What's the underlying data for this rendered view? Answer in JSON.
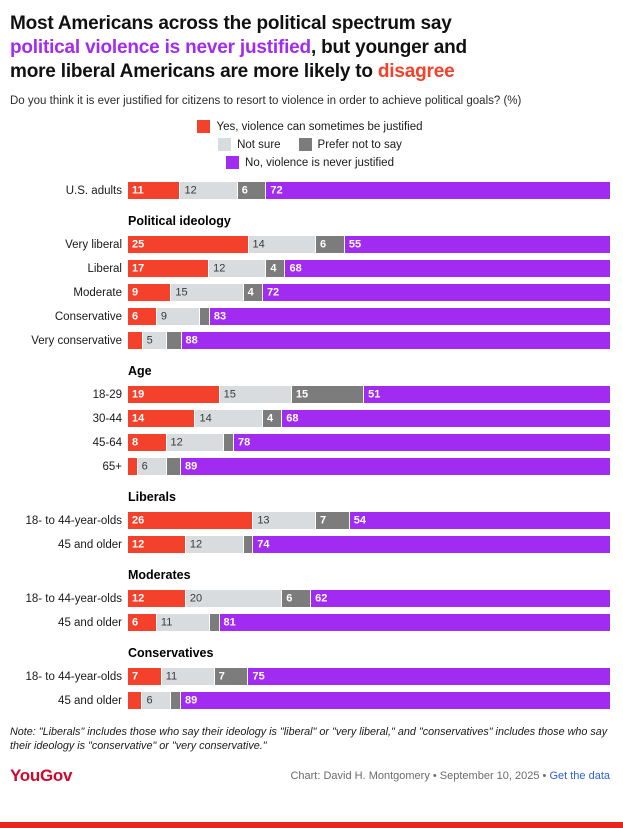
{
  "page": {
    "title_lines": [
      [
        {
          "t": "Most Americans across the political spectrum say",
          "c": "black"
        }
      ],
      [
        {
          "t": "political violence is never justified",
          "c": "purple"
        },
        {
          "t": ", but younger and",
          "c": "black"
        }
      ],
      [
        {
          "t": "more liberal Americans are more likely to ",
          "c": "black"
        },
        {
          "t": "disagree",
          "c": "red"
        }
      ]
    ],
    "subtitle": "Do you think it is ever justified for citizens to resort to violence in order to achieve political goals? (%)",
    "note": "Note: \"Liberals\" includes those who say their ideology is \"liberal\" or \"very liberal,\" and \"conservatives\" includes those who say their ideology is \"conservative\" or \"very conservative.\"",
    "footer": {
      "brand": "YouGov",
      "credit": "Chart: David H. Montgomery • September 10, 2025 • ",
      "link": "Get the data"
    }
  },
  "colors": {
    "text": "#111111",
    "red": "#F4412C",
    "purple": "#A22BF2",
    "light_gray": "#D8DCDE",
    "dark_gray": "#7C7C7C",
    "brand": "#CE0A2C",
    "link": "#2E62D9",
    "stripe": "#E8261E"
  },
  "chart_data": {
    "type": "bar",
    "stacked": true,
    "orientation": "horizontal",
    "unit": "%",
    "title": "Do you think it is ever justified for citizens to resort to violence in order to achieve political goals? (%)",
    "label_min_value": 4,
    "legend": [
      {
        "label": "Yes, violence can sometimes be justified",
        "color": "#F4412C"
      },
      {
        "label": "Not sure",
        "color": "#D8DCDE"
      },
      {
        "label": "Prefer not to say",
        "color": "#7C7C7C"
      },
      {
        "label": "No, violence is never justified",
        "color": "#A22BF2"
      }
    ],
    "legend_layout": [
      [
        0
      ],
      [
        1,
        2
      ],
      [
        3
      ]
    ],
    "groups": [
      {
        "header": "",
        "rows": [
          {
            "label": "U.S. adults",
            "values": [
              11,
              12,
              6,
              72
            ]
          }
        ]
      },
      {
        "header": "Political ideology",
        "rows": [
          {
            "label": "Very liberal",
            "values": [
              25,
              14,
              6,
              55
            ]
          },
          {
            "label": "Liberal",
            "values": [
              17,
              12,
              4,
              68
            ]
          },
          {
            "label": "Moderate",
            "values": [
              9,
              15,
              4,
              72
            ]
          },
          {
            "label": "Conservative",
            "values": [
              6,
              9,
              2,
              83
            ]
          },
          {
            "label": "Very conservative",
            "values": [
              3,
              5,
              3,
              88
            ]
          }
        ]
      },
      {
        "header": "Age",
        "rows": [
          {
            "label": "18-29",
            "values": [
              19,
              15,
              15,
              51
            ]
          },
          {
            "label": "30-44",
            "values": [
              14,
              14,
              4,
              68
            ]
          },
          {
            "label": "45-64",
            "values": [
              8,
              12,
              2,
              78
            ]
          },
          {
            "label": "65+",
            "values": [
              2,
              6,
              3,
              89
            ]
          }
        ]
      },
      {
        "header": "Liberals",
        "rows": [
          {
            "label": "18- to 44-year-olds",
            "values": [
              26,
              13,
              7,
              54
            ]
          },
          {
            "label": "45 and older",
            "values": [
              12,
              12,
              2,
              74
            ]
          }
        ]
      },
      {
        "header": "Moderates",
        "rows": [
          {
            "label": "18- to 44-year-olds",
            "values": [
              12,
              20,
              6,
              62
            ]
          },
          {
            "label": "45 and older",
            "values": [
              6,
              11,
              2,
              81
            ]
          }
        ]
      },
      {
        "header": "Conservatives",
        "rows": [
          {
            "label": "18- to 44-year-olds",
            "values": [
              7,
              11,
              7,
              75
            ]
          },
          {
            "label": "45 and older",
            "values": [
              3,
              6,
              2,
              89
            ]
          }
        ]
      }
    ]
  }
}
